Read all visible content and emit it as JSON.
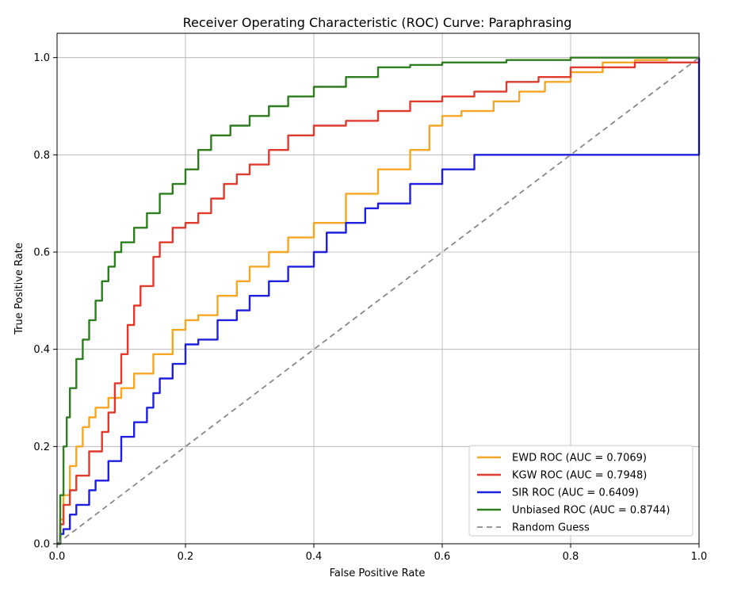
{
  "chart_data": {
    "type": "line",
    "title": "Receiver Operating Characteristic (ROC) Curve: Paraphrasing",
    "xlabel": "False Positive Rate",
    "ylabel": "True Positive Rate",
    "xlim": [
      0,
      1
    ],
    "ylim": [
      0,
      1.05
    ],
    "xticks": [
      "0.0",
      "0.2",
      "0.4",
      "0.6",
      "0.8",
      "1.0"
    ],
    "yticks": [
      "0.0",
      "0.2",
      "0.4",
      "0.6",
      "0.8",
      "1.0"
    ],
    "grid": true,
    "legend_position": "lower-right",
    "series": [
      {
        "name": "EWD ROC (AUC = 0.7069)",
        "color": "#f5a623",
        "x": [
          0.0,
          0.005,
          0.01,
          0.02,
          0.03,
          0.04,
          0.05,
          0.06,
          0.08,
          0.1,
          0.12,
          0.15,
          0.18,
          0.2,
          0.22,
          0.25,
          0.28,
          0.3,
          0.33,
          0.36,
          0.4,
          0.45,
          0.5,
          0.55,
          0.58,
          0.6,
          0.63,
          0.68,
          0.72,
          0.76,
          0.8,
          0.85,
          0.9,
          0.95,
          1.0
        ],
        "y": [
          0.0,
          0.05,
          0.1,
          0.16,
          0.2,
          0.24,
          0.26,
          0.28,
          0.3,
          0.32,
          0.35,
          0.39,
          0.44,
          0.46,
          0.47,
          0.51,
          0.54,
          0.57,
          0.6,
          0.63,
          0.66,
          0.72,
          0.77,
          0.81,
          0.86,
          0.88,
          0.89,
          0.91,
          0.93,
          0.95,
          0.97,
          0.99,
          0.995,
          1.0,
          1.0
        ]
      },
      {
        "name": "KGW ROC (AUC = 0.7948)",
        "color": "#e03a2e",
        "x": [
          0.0,
          0.005,
          0.01,
          0.02,
          0.03,
          0.05,
          0.07,
          0.08,
          0.09,
          0.1,
          0.11,
          0.12,
          0.13,
          0.15,
          0.16,
          0.18,
          0.2,
          0.22,
          0.24,
          0.26,
          0.28,
          0.3,
          0.33,
          0.36,
          0.4,
          0.45,
          0.5,
          0.55,
          0.6,
          0.65,
          0.7,
          0.75,
          0.8,
          0.9,
          1.0
        ],
        "y": [
          0.0,
          0.04,
          0.08,
          0.11,
          0.14,
          0.19,
          0.23,
          0.27,
          0.33,
          0.39,
          0.45,
          0.49,
          0.53,
          0.59,
          0.62,
          0.65,
          0.66,
          0.68,
          0.71,
          0.74,
          0.76,
          0.78,
          0.81,
          0.84,
          0.86,
          0.87,
          0.89,
          0.91,
          0.92,
          0.93,
          0.95,
          0.96,
          0.98,
          0.99,
          1.0
        ]
      },
      {
        "name": "SIR ROC (AUC = 0.6409)",
        "color": "#1f1fe0",
        "x": [
          0.0,
          0.005,
          0.01,
          0.02,
          0.03,
          0.05,
          0.06,
          0.08,
          0.1,
          0.12,
          0.14,
          0.15,
          0.16,
          0.18,
          0.2,
          0.22,
          0.25,
          0.28,
          0.3,
          0.33,
          0.36,
          0.4,
          0.42,
          0.45,
          0.48,
          0.5,
          0.55,
          0.6,
          0.65,
          1.0
        ],
        "y": [
          0.0,
          0.02,
          0.03,
          0.06,
          0.08,
          0.11,
          0.13,
          0.17,
          0.22,
          0.25,
          0.28,
          0.31,
          0.34,
          0.37,
          0.41,
          0.42,
          0.46,
          0.48,
          0.51,
          0.54,
          0.57,
          0.6,
          0.64,
          0.66,
          0.69,
          0.7,
          0.74,
          0.77,
          0.8,
          1.0
        ]
      },
      {
        "name": "Unbiased ROC (AUC = 0.8744)",
        "color": "#2e7d1f",
        "x": [
          0.0,
          0.005,
          0.01,
          0.015,
          0.02,
          0.03,
          0.04,
          0.05,
          0.06,
          0.07,
          0.08,
          0.09,
          0.1,
          0.12,
          0.14,
          0.16,
          0.18,
          0.2,
          0.22,
          0.24,
          0.27,
          0.3,
          0.33,
          0.36,
          0.4,
          0.45,
          0.5,
          0.55,
          0.6,
          0.7,
          0.8,
          0.9,
          1.0
        ],
        "y": [
          0.0,
          0.1,
          0.2,
          0.26,
          0.32,
          0.38,
          0.42,
          0.46,
          0.5,
          0.54,
          0.57,
          0.6,
          0.62,
          0.65,
          0.68,
          0.72,
          0.74,
          0.77,
          0.81,
          0.84,
          0.86,
          0.88,
          0.9,
          0.92,
          0.94,
          0.96,
          0.98,
          0.985,
          0.99,
          0.995,
          1.0,
          1.0,
          1.0
        ]
      },
      {
        "name": "Random Guess",
        "color": "#888888",
        "dashed": true,
        "x": [
          0.0,
          1.0
        ],
        "y": [
          0.0,
          1.0
        ]
      }
    ]
  }
}
